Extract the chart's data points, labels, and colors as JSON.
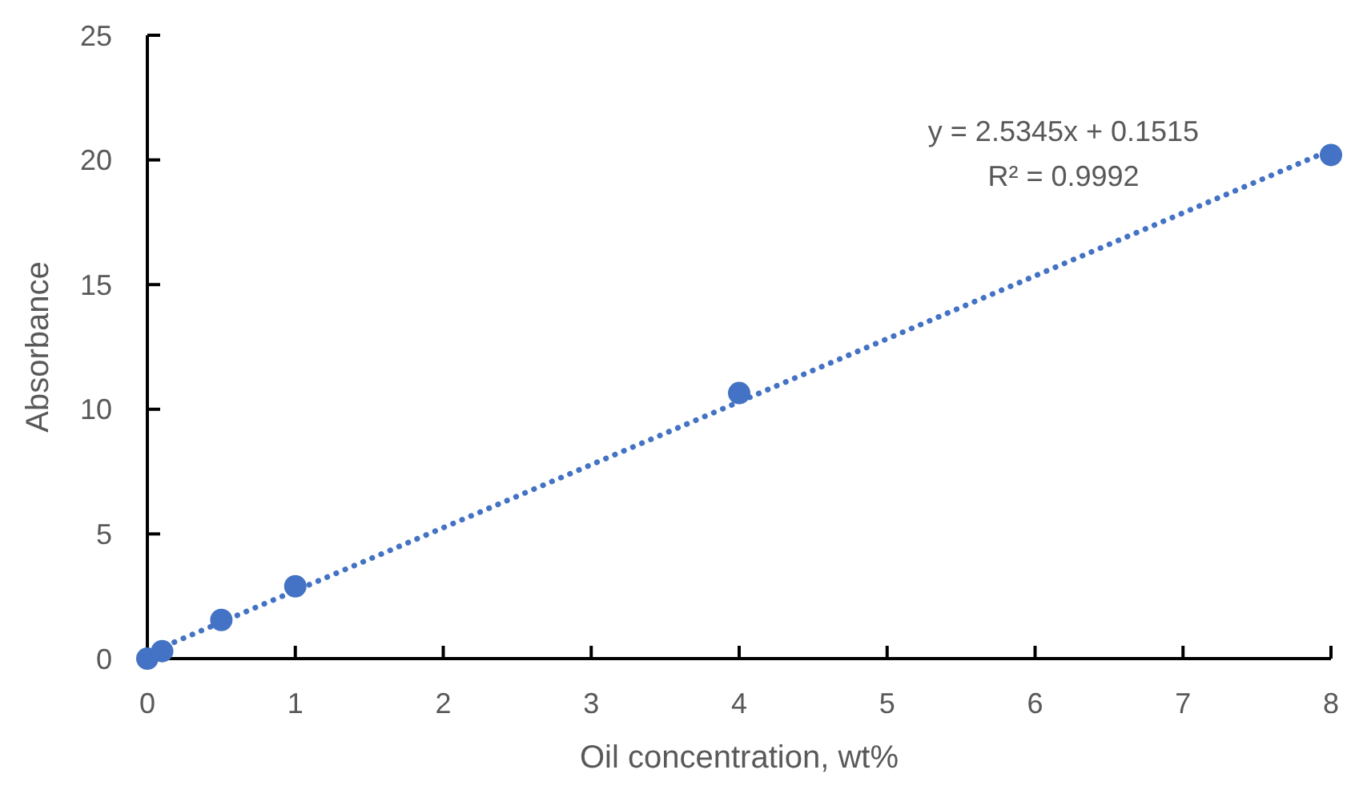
{
  "chart_data": {
    "type": "scatter",
    "xlabel": "Oil concentration, wt%",
    "ylabel": "Absorbance",
    "xlim": [
      0,
      8
    ],
    "xticks": [
      0,
      1,
      2,
      3,
      4,
      5,
      6,
      7,
      8
    ],
    "ylim": [
      0,
      25
    ],
    "yticks": [
      0,
      5,
      10,
      15,
      20,
      25
    ],
    "grid": false,
    "series": [
      {
        "color": "#4472c4",
        "marker": "circle",
        "x": [
          0,
          0.1,
          0.5,
          1,
          4,
          8
        ],
        "values": [
          0,
          0.3,
          1.55,
          2.9,
          10.65,
          20.2
        ]
      },
      {
        "type": "line",
        "color": "#4472c4",
        "line_style": "dotted",
        "marker": "none",
        "x": [
          0,
          8
        ],
        "values": [
          0.2,
          20.4
        ]
      }
    ],
    "annotations": [
      "y = 2.5345x + 0.1515",
      "R² = 0.9992"
    ]
  }
}
